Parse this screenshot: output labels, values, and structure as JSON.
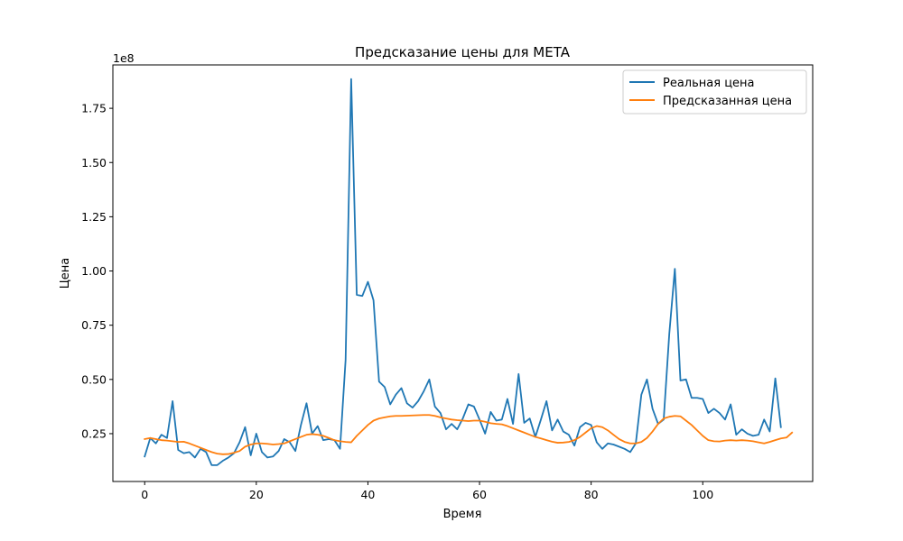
{
  "chart_data": {
    "type": "line",
    "title": "Предсказание цены для META",
    "xlabel": "Время",
    "ylabel": "Цена",
    "y_multiplier": "1e8",
    "xlim": [
      -5.7,
      119.7
    ],
    "ylim": [
      2950000,
      195000000
    ],
    "x_ticks": [
      0,
      20,
      40,
      60,
      80,
      100
    ],
    "y_ticks": [
      25000000,
      50000000,
      75000000,
      100000000,
      125000000,
      150000000,
      175000000
    ],
    "x_tick_labels": [
      "0",
      "20",
      "40",
      "60",
      "80",
      "100"
    ],
    "y_tick_labels": [
      "0.25",
      "0.50",
      "0.75",
      "1.00",
      "1.25",
      "1.50",
      "1.75"
    ],
    "grid": false,
    "legend_position": "top-right",
    "series": [
      {
        "name": "Реальная цена",
        "color": "#1f77b4",
        "values": [
          14500000,
          23000000,
          20500000,
          24500000,
          23000000,
          40000000,
          17500000,
          16000000,
          16500000,
          14000000,
          18000000,
          16500000,
          10500000,
          10500000,
          12500000,
          14000000,
          16000000,
          21000000,
          28000000,
          15000000,
          25000000,
          16500000,
          14000000,
          14500000,
          17000000,
          22500000,
          21000000,
          17000000,
          29000000,
          39000000,
          25000000,
          28500000,
          22000000,
          22500000,
          22000000,
          18000000,
          59000000,
          188500000,
          89000000,
          88500000,
          95000000,
          86500000,
          49000000,
          46500000,
          38500000,
          43000000,
          46000000,
          39000000,
          37000000,
          40000000,
          44500000,
          50000000,
          37500000,
          34500000,
          27000000,
          29500000,
          27000000,
          32000000,
          38500000,
          37500000,
          31500000,
          25000000,
          35000000,
          31000000,
          31500000,
          41000000,
          29500000,
          52500000,
          30000000,
          32000000,
          23500000,
          31500000,
          40000000,
          26500000,
          31500000,
          26000000,
          24500000,
          19500000,
          28000000,
          30000000,
          29000000,
          21000000,
          18000000,
          20500000,
          20000000,
          19000000,
          18000000,
          16500000,
          20500000,
          43000000,
          50000000,
          36500000,
          29500000,
          31500000,
          71000000,
          101000000,
          49500000,
          50000000,
          41500000,
          41500000,
          41000000,
          34500000,
          36500000,
          34500000,
          31500000,
          38500000,
          24500000,
          27000000,
          25000000,
          24000000,
          24500000,
          31500000,
          26000000,
          50500000,
          28000000
        ]
      },
      {
        "name": "Предсказанная цена",
        "color": "#ff7f0e",
        "values": [
          22500000,
          23000000,
          22500000,
          22000000,
          21800000,
          21500000,
          21200000,
          21300000,
          20500000,
          19500000,
          18500000,
          17500000,
          16500000,
          15800000,
          15500000,
          15600000,
          16200000,
          17000000,
          19000000,
          20000000,
          20500000,
          20500000,
          20300000,
          20000000,
          20200000,
          20500000,
          21500000,
          22500000,
          23500000,
          24500000,
          24800000,
          24500000,
          24000000,
          23000000,
          22000000,
          21500000,
          21200000,
          21000000,
          24000000,
          26500000,
          29000000,
          31000000,
          32000000,
          32500000,
          33000000,
          33200000,
          33200000,
          33300000,
          33400000,
          33500000,
          33600000,
          33600000,
          33200000,
          32500000,
          32000000,
          31500000,
          31200000,
          31000000,
          30800000,
          31000000,
          31000000,
          30500000,
          29800000,
          29500000,
          29300000,
          28500000,
          27500000,
          26500000,
          25500000,
          24500000,
          23500000,
          22800000,
          22000000,
          21300000,
          20800000,
          20900000,
          21200000,
          22000000,
          23500000,
          25500000,
          27500000,
          28500000,
          28000000,
          26500000,
          24500000,
          22500000,
          21200000,
          20500000,
          20500000,
          21200000,
          23000000,
          26000000,
          29500000,
          32000000,
          32800000,
          33200000,
          33000000,
          31000000,
          29000000,
          26500000,
          24000000,
          22000000,
          21500000,
          21400000,
          21800000,
          22000000,
          21800000,
          22000000,
          21800000,
          21500000,
          21000000,
          20500000,
          21200000,
          22000000,
          22800000,
          23200000,
          25500000
        ]
      }
    ]
  }
}
